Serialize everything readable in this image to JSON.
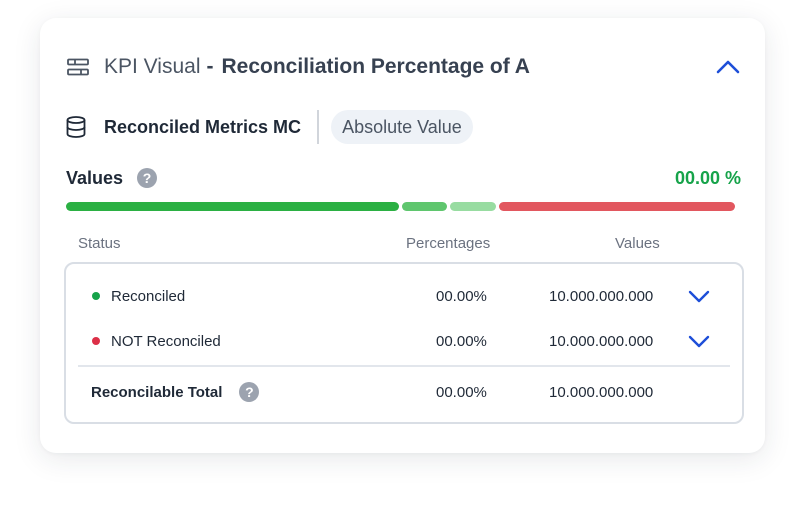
{
  "header": {
    "kpi_label": "KPI Visual",
    "separator": "-",
    "title": "Reconciliation Percentage of A",
    "icons": {
      "filter": "sliders-icon",
      "collapse": "chevron-up-icon"
    }
  },
  "source": {
    "name": "Reconciled Metrics MC",
    "mode_pill": "Absolute Value",
    "icon": "database-icon"
  },
  "values": {
    "label": "Values",
    "help_symbol": "?",
    "percentage": "00.00 %",
    "percentage_color": "#16a34a",
    "bar_segments": [
      {
        "name": "reconciled",
        "fraction": 0.5,
        "color": "#2bb043"
      },
      {
        "name": "segment-2",
        "fraction": 0.068,
        "color": "#5fc66e"
      },
      {
        "name": "segment-3",
        "fraction": 0.068,
        "color": "#98dca1"
      },
      {
        "name": "not-reconciled",
        "fraction": 0.355,
        "color": "#e2575f"
      }
    ]
  },
  "table": {
    "columns": [
      "Status",
      "Percentages",
      "Values"
    ],
    "rows": [
      {
        "status": "Reconciled",
        "dot_color": "#16a34a",
        "percentage": "00.00%",
        "value": "10.000.000.000"
      },
      {
        "status": "NOT Reconciled",
        "dot_color": "#dc2f47",
        "percentage": "00.00%",
        "value": "10.000.000.000"
      }
    ],
    "total": {
      "label": "Reconcilable Total",
      "help_symbol": "?",
      "percentage": "00.00%",
      "value": "10.000.000.000"
    }
  },
  "colors": {
    "accent": "#1d4ed8"
  }
}
